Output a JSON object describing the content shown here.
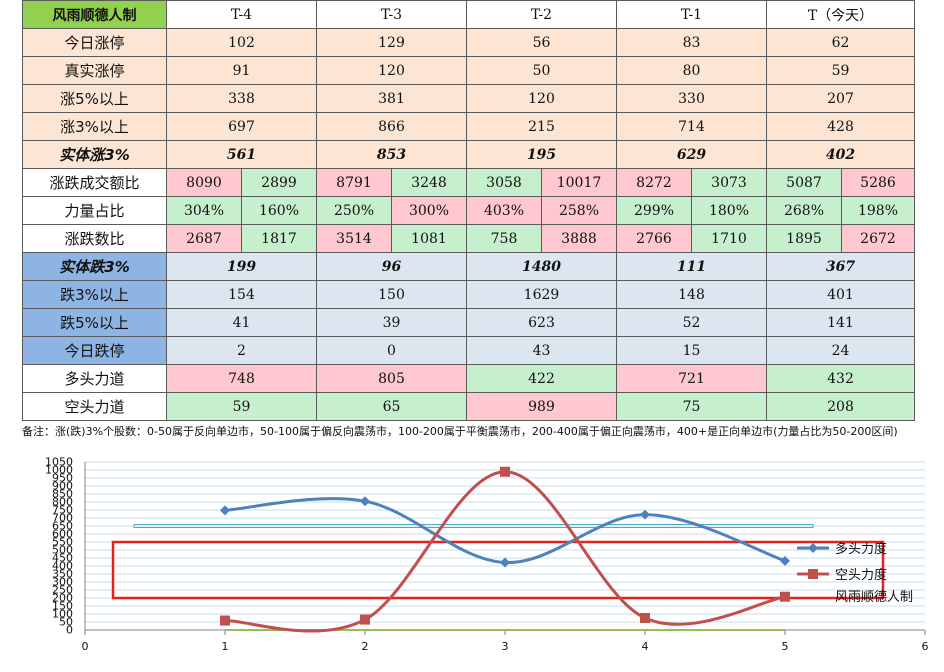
{
  "table": {
    "corner": "风雨顺德人制",
    "headers": [
      "T-4",
      "T-3",
      "T-2",
      "T-1",
      "T（今天）"
    ],
    "up_section": [
      {
        "label": "今日涨停",
        "values": [
          "102",
          "129",
          "56",
          "83",
          "62"
        ]
      },
      {
        "label": "真实涨停",
        "values": [
          "91",
          "120",
          "50",
          "80",
          "59"
        ]
      },
      {
        "label": "涨5%以上",
        "values": [
          "338",
          "381",
          "120",
          "330",
          "207"
        ]
      },
      {
        "label": "涨3%以上",
        "values": [
          "697",
          "866",
          "215",
          "714",
          "428"
        ]
      },
      {
        "label": "实体涨3%",
        "values": [
          "561",
          "853",
          "195",
          "629",
          "402"
        ]
      }
    ],
    "split_section": [
      {
        "label": "涨跌成交额比",
        "pairs": [
          [
            "8090",
            "2899"
          ],
          [
            "8791",
            "3248"
          ],
          [
            "3058",
            "10017"
          ],
          [
            "8272",
            "3073"
          ],
          [
            "5087",
            "5286"
          ]
        ],
        "colors": [
          [
            "pink",
            "green"
          ],
          [
            "pink",
            "green"
          ],
          [
            "green",
            "pink"
          ],
          [
            "pink",
            "green"
          ],
          [
            "green",
            "pink"
          ]
        ]
      },
      {
        "label": "力量占比",
        "pairs": [
          [
            "304%",
            "160%"
          ],
          [
            "250%",
            "300%"
          ],
          [
            "403%",
            "258%"
          ],
          [
            "299%",
            "180%"
          ],
          [
            "268%",
            "198%"
          ]
        ],
        "colors": [
          [
            "green",
            "green"
          ],
          [
            "green",
            "pink"
          ],
          [
            "pink",
            "pink"
          ],
          [
            "green",
            "green"
          ],
          [
            "green",
            "green"
          ]
        ]
      },
      {
        "label": "涨跌数比",
        "pairs": [
          [
            "2687",
            "1817"
          ],
          [
            "3514",
            "1081"
          ],
          [
            "758",
            "3888"
          ],
          [
            "2766",
            "1710"
          ],
          [
            "1895",
            "2672"
          ]
        ],
        "colors": [
          [
            "pink",
            "green"
          ],
          [
            "pink",
            "green"
          ],
          [
            "green",
            "pink"
          ],
          [
            "pink",
            "green"
          ],
          [
            "green",
            "pink"
          ]
        ]
      }
    ],
    "down_section": [
      {
        "label": "实体跌3%",
        "values": [
          "199",
          "96",
          "1480",
          "111",
          "367"
        ]
      },
      {
        "label": "跌3%以上",
        "values": [
          "154",
          "150",
          "1629",
          "148",
          "401"
        ]
      },
      {
        "label": "跌5%以上",
        "values": [
          "41",
          "39",
          "623",
          "52",
          "141"
        ]
      },
      {
        "label": "今日跌停",
        "values": [
          "2",
          "0",
          "43",
          "15",
          "24"
        ]
      }
    ],
    "force_section": [
      {
        "label": "多头力道",
        "values": [
          "748",
          "805",
          "422",
          "721",
          "432"
        ],
        "colors": [
          "pink",
          "pink",
          "green",
          "pink",
          "green"
        ]
      },
      {
        "label": "空头力道",
        "values": [
          "59",
          "65",
          "989",
          "75",
          "208"
        ],
        "colors": [
          "green",
          "green",
          "pink",
          "green",
          "green"
        ]
      }
    ]
  },
  "note": "备注：涨(跌)3%个股数：0-50属于反向单边市，50-100属于偏反向震荡市，100-200属于平衡震荡市，200-400属于偏正向震荡市，400+是正向单边市(力量占比为50-200区间)",
  "colors": {
    "bull": "#4f81bd",
    "bear": "#c0504d",
    "box": "#e8201e",
    "hline": "#4bacc6",
    "baseline": "#9bbb59"
  },
  "chart_data": {
    "type": "line",
    "x": [
      1,
      2,
      3,
      4,
      5
    ],
    "xlim": [
      0,
      6
    ],
    "xticks": [
      "0",
      "1",
      "2",
      "3",
      "4",
      "5",
      "6"
    ],
    "ylim": [
      0,
      1050
    ],
    "yticks": [
      "0",
      "50",
      "100",
      "150",
      "200",
      "250",
      "300",
      "350",
      "400",
      "450",
      "500",
      "550",
      "600",
      "650",
      "700",
      "750",
      "800",
      "850",
      "900",
      "950",
      "1000",
      "1050"
    ],
    "series": [
      {
        "name": "多头力度",
        "values": [
          748,
          805,
          422,
          721,
          432
        ],
        "color": "#4f81bd",
        "marker": "diamond"
      },
      {
        "name": "空头力度",
        "values": [
          59,
          65,
          989,
          75,
          208
        ],
        "color": "#c0504d",
        "marker": "square"
      }
    ],
    "reference_line": {
      "y": 650,
      "x_from": 0.35,
      "x_to": 5.2
    },
    "highlight_band": {
      "y_from": 200,
      "y_to": 550,
      "x_from": 0.2,
      "x_to": 5.7
    },
    "legend_position": "right",
    "legend_extra": "风雨顺德人制",
    "grid": true
  }
}
